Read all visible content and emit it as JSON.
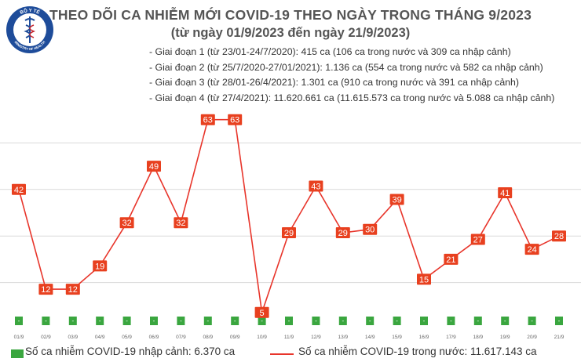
{
  "header": {
    "title": "THEO DÕI CA NHIỄM MỚI COVID-19 THEO NGÀY TRONG THÁNG 9/2023",
    "subtitle": "(từ ngày 01/9/2023 đến ngày 21/9/2023)",
    "phases": [
      "- Giai đoạn 1 (từ 23/01-24/7/2020): 415 ca (106 ca trong nước và 309 ca nhập cảnh)",
      "- Giai đoạn 2 (từ 25/7/2020-27/01/2021): 1.136 ca (554 ca trong nước và 582 ca nhập cảnh)",
      "- Giai đoạn 3 (từ 28/01-26/4/2021): 1.301 ca (910 ca trong nước và 391 ca nhập cảnh)",
      "- Giai đoạn 4 (từ 27/4/2021): 11.620.661 ca (11.615.573 ca trong nước và 5.088 ca nhập cảnh)"
    ]
  },
  "logo": {
    "top_text": "BỘ Y TẾ",
    "bottom_text": "MINISTRY OF HEALTH",
    "icon": "caduceus-icon"
  },
  "chart_data": {
    "type": "line",
    "categories": [
      "01/9",
      "02/9",
      "03/9",
      "04/9",
      "05/9",
      "06/9",
      "07/9",
      "08/9",
      "09/9",
      "10/9",
      "11/9",
      "12/9",
      "13/9",
      "14/9",
      "15/9",
      "16/9",
      "17/9",
      "18/9",
      "19/9",
      "20/9",
      "21/9"
    ],
    "series": [
      {
        "name": "Số ca nhiễm COVID-19 trong nước: 11.617.143 ca",
        "type": "line",
        "values": [
          42,
          12,
          12,
          19,
          32,
          49,
          32,
          63,
          63,
          5,
          29,
          43,
          29,
          30,
          39,
          15,
          21,
          27,
          41,
          24,
          28
        ]
      },
      {
        "name": "Số ca nhiễm COVID-19 nhập cảnh: 6.370 ca",
        "type": "bar",
        "values": [
          0,
          0,
          0,
          0,
          0,
          0,
          0,
          0,
          0,
          0,
          0,
          0,
          0,
          0,
          0,
          0,
          0,
          0,
          0,
          0,
          0
        ]
      }
    ],
    "ylim": [
      0,
      70
    ],
    "grid": false,
    "legend_position": "bottom",
    "colors": {
      "domestic": "#e8352b",
      "imported": "#3aa63f",
      "label_box": "#e8401f",
      "gridline": "#d9d9d9",
      "title": "#555555"
    }
  },
  "legend": {
    "imported_label": "Số ca nhiễm COVID-19 nhập cảnh: 6.370 ca",
    "domestic_label": "Số ca nhiễm COVID-19 trong nước: 11.617.143 ca"
  }
}
